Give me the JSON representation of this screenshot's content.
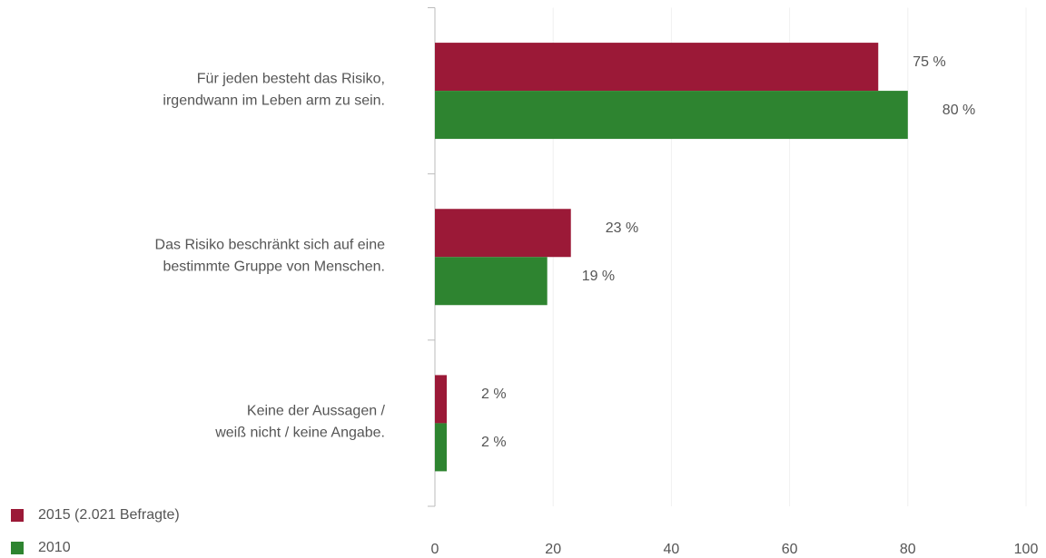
{
  "chart_data": {
    "type": "barh",
    "categories": [
      [
        "Für jeden besteht das Risiko,",
        "irgendwann im Leben arm zu sein."
      ],
      [
        "Das Risiko beschränkt sich auf eine",
        "bestimmte Gruppe von Menschen."
      ],
      [
        "Keine der Aussagen /",
        "weiß nicht / keine Angabe."
      ]
    ],
    "series": [
      {
        "name": "2015 (2.021 Befragte)",
        "color": "#9b1937",
        "values": [
          75,
          23,
          2
        ],
        "value_labels": [
          "75 %",
          "23 %",
          "2 %"
        ]
      },
      {
        "name": "2010",
        "color": "#2e8430",
        "values": [
          80,
          19,
          2
        ],
        "value_labels": [
          "80 %",
          "19 %",
          "2 %"
        ]
      }
    ],
    "xlim": [
      0,
      100
    ],
    "xticks": [
      0,
      20,
      40,
      60,
      80,
      100
    ],
    "grid": true
  }
}
